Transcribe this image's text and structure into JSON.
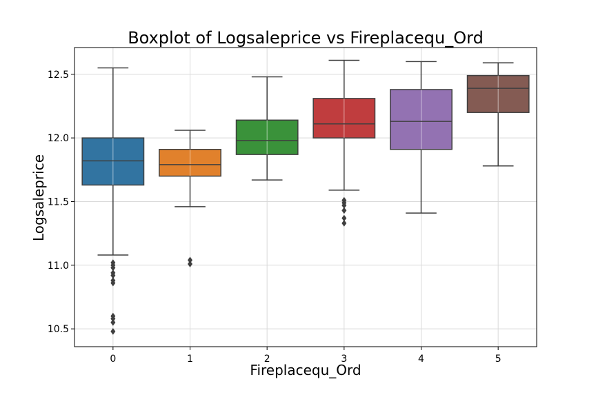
{
  "chart_data": {
    "type": "boxplot",
    "title": "Boxplot of Logsaleprice vs Fireplacequ_Ord",
    "xlabel": "Fireplacequ_Ord",
    "ylabel": "Logsaleprice",
    "categories": [
      "0",
      "1",
      "2",
      "3",
      "4",
      "5"
    ],
    "ylim": [
      10.36,
      12.71
    ],
    "yticks": [
      10.5,
      11.0,
      11.5,
      12.0,
      12.5
    ],
    "ytick_labels": [
      "10.5",
      "11.0",
      "11.5",
      "12.0",
      "12.5"
    ],
    "grid": true,
    "boxes": [
      {
        "category": "0",
        "color": "#3274a1",
        "whisker_low": 11.08,
        "q1": 11.63,
        "median": 11.82,
        "q3": 12.0,
        "whisker_high": 12.55,
        "outliers": [
          11.02,
          11.0,
          10.98,
          10.94,
          10.92,
          10.88,
          10.86,
          10.6,
          10.58,
          10.55,
          10.48
        ]
      },
      {
        "category": "1",
        "color": "#e1812c",
        "whisker_low": 11.46,
        "q1": 11.7,
        "median": 11.79,
        "q3": 11.91,
        "whisker_high": 12.06,
        "outliers": [
          11.04,
          11.01
        ]
      },
      {
        "category": "2",
        "color": "#3a923a",
        "whisker_low": 11.67,
        "q1": 11.87,
        "median": 11.98,
        "q3": 12.14,
        "whisker_high": 12.48,
        "outliers": []
      },
      {
        "category": "3",
        "color": "#c03d3e",
        "whisker_low": 11.59,
        "q1": 12.0,
        "median": 12.11,
        "q3": 12.31,
        "whisker_high": 12.61,
        "outliers": [
          11.51,
          11.49,
          11.47,
          11.43,
          11.37,
          11.33
        ]
      },
      {
        "category": "4",
        "color": "#9372b2",
        "whisker_low": 11.41,
        "q1": 11.91,
        "median": 12.13,
        "q3": 12.38,
        "whisker_high": 12.6,
        "outliers": []
      },
      {
        "category": "5",
        "color": "#845b53",
        "whisker_low": 11.78,
        "q1": 12.2,
        "median": 12.39,
        "q3": 12.49,
        "whisker_high": 12.59,
        "outliers": []
      }
    ]
  }
}
